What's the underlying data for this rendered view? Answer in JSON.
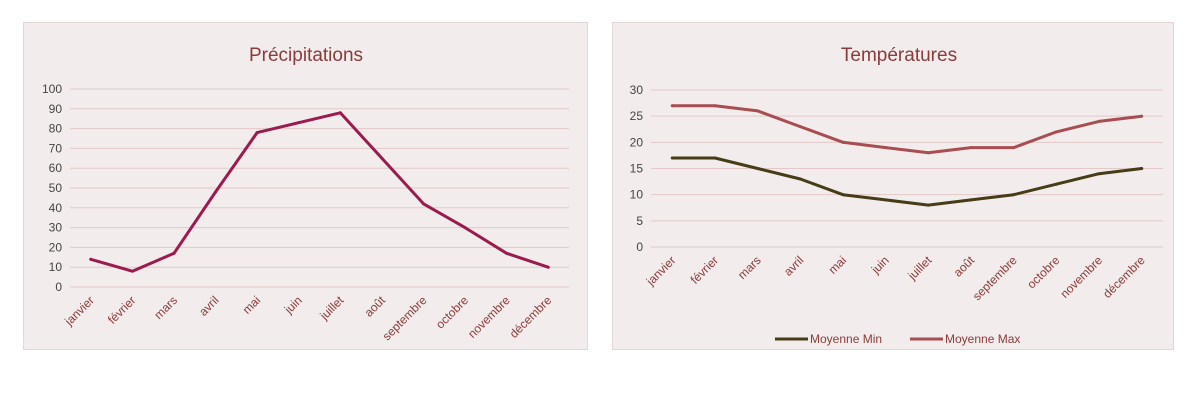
{
  "colors": {
    "precip_line": "#9b1b4f",
    "min_line": "#463c16",
    "max_line": "#a84d52",
    "grid": "#e3c9c9",
    "panel_bg": "#f3ecec"
  },
  "chart_data": [
    {
      "type": "line",
      "title": "Précipitations",
      "xlabel": "",
      "ylabel": "",
      "categories": [
        "janvier",
        "février",
        "mars",
        "avril",
        "mai",
        "juin",
        "juillet",
        "août",
        "septembre",
        "octobre",
        "novembre",
        "décembre"
      ],
      "y_ticks": [
        "0",
        "10",
        "20",
        "30",
        "40",
        "50",
        "60",
        "70",
        "80",
        "90",
        "100"
      ],
      "ylim": [
        0,
        100
      ],
      "grid": true,
      "legend": "none",
      "series": [
        {
          "values": [
            14,
            8,
            17,
            48,
            78,
            83,
            88,
            65,
            42,
            30,
            17,
            10
          ]
        }
      ]
    },
    {
      "type": "line",
      "title": "Températures",
      "xlabel": "",
      "ylabel": "",
      "categories": [
        "janvier",
        "février",
        "mars",
        "avril",
        "mai",
        "juin",
        "juillet",
        "août",
        "septembre",
        "octobre",
        "novembre",
        "décembre"
      ],
      "y_ticks": [
        "0",
        "5",
        "10",
        "15",
        "20",
        "25",
        "30"
      ],
      "ylim": [
        0,
        30
      ],
      "grid": true,
      "legend": "bottom",
      "series": [
        {
          "name": "Moyenne Min",
          "values": [
            17,
            17,
            15,
            13,
            10,
            9,
            8,
            9,
            10,
            12,
            14,
            15
          ]
        },
        {
          "name": "Moyenne Max",
          "values": [
            27,
            27,
            26,
            23,
            20,
            19,
            18,
            19,
            19,
            22,
            24,
            25
          ]
        }
      ]
    }
  ]
}
